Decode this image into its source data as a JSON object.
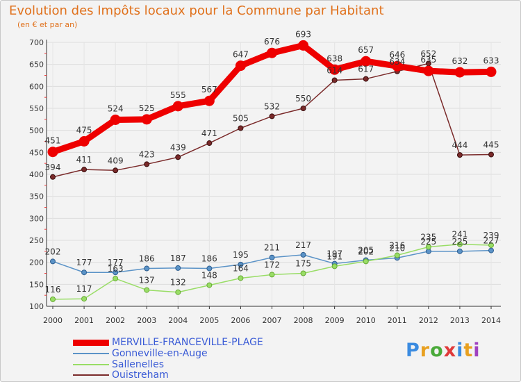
{
  "chart_data": {
    "type": "line",
    "title": "Evolution des Impôts locaux pour la Commune par Habitant",
    "subtitle": "(en € et par an)",
    "xlabel": "",
    "ylabel": "",
    "ylim": [
      100,
      700
    ],
    "yticks": [
      100,
      150,
      200,
      250,
      300,
      350,
      400,
      450,
      500,
      550,
      600,
      650,
      700
    ],
    "categories": [
      "2000",
      "2001",
      "2002",
      "2003",
      "2004",
      "2005",
      "2006",
      "2007",
      "2008",
      "2009",
      "2010",
      "2011",
      "2012",
      "2013",
      "2014"
    ],
    "series": [
      {
        "name": "MERVILLE-FRANCEVILLE-PLAGE",
        "color": "#ee0000",
        "values": [
          451,
          475,
          524,
          525,
          555,
          567,
          647,
          676,
          693,
          638,
          657,
          646,
          635,
          632,
          633
        ]
      },
      {
        "name": "Gonneville-en-Auge",
        "color": "#5b93c7",
        "values": [
          202,
          177,
          177,
          186,
          187,
          186,
          195,
          211,
          217,
          197,
          205,
          210,
          225,
          225,
          227
        ]
      },
      {
        "name": "Sallenelles",
        "color": "#99dd66",
        "values": [
          116,
          117,
          163,
          137,
          132,
          148,
          164,
          172,
          175,
          191,
          202,
          216,
          235,
          241,
          239
        ]
      },
      {
        "name": "Ouistreham",
        "color": "#7a2a2a",
        "values": [
          394,
          411,
          409,
          423,
          439,
          471,
          505,
          532,
          550,
          614,
          617,
          634,
          652,
          444,
          445
        ]
      }
    ],
    "grid": true,
    "legend_position": "bottom-left"
  },
  "branding": {
    "logo_text": "Proxiti",
    "logo_colors": [
      "#3a8be0",
      "#e8a020",
      "#4aaa3a",
      "#e03a3a",
      "#3a8be0",
      "#e8a020",
      "#a040c0"
    ]
  }
}
